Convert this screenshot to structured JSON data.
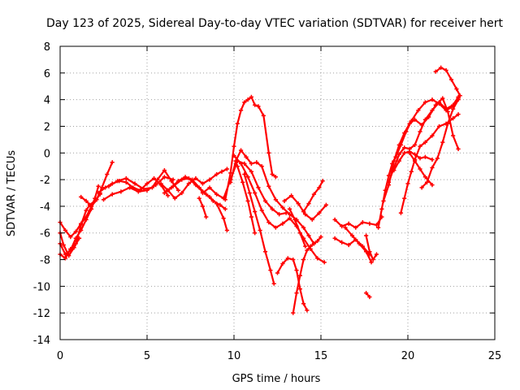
{
  "chart_data": {
    "type": "scatter",
    "title": "Day 123 of 2025, Sidereal Day-to-day VTEC variation (SDTVAR) for receiver hert",
    "xlabel": "GPS time / hours",
    "ylabel": "SDTVAR / TECUs",
    "xlim": [
      0,
      25
    ],
    "ylim": [
      -14,
      8
    ],
    "x_ticks": [
      0,
      5,
      10,
      15,
      20,
      25
    ],
    "y_ticks": [
      -14,
      -12,
      -10,
      -8,
      -6,
      -4,
      -2,
      0,
      2,
      4,
      6,
      8
    ],
    "x_tick_labels": [
      "0",
      "5",
      "10",
      "15",
      "20",
      "25"
    ],
    "y_tick_labels": [
      "-14",
      "-12",
      "-10",
      "-8",
      "-6",
      "-4",
      "-2",
      "0",
      "2",
      "4",
      "6",
      "8"
    ],
    "grid": true,
    "marker": "+",
    "series_color": "#ff0000",
    "series": [
      {
        "x": [
          0.0,
          0.3,
          0.6,
          0.9,
          1.2,
          1.5,
          1.8,
          2.1,
          2.3
        ],
        "y": [
          -5.2,
          -5.8,
          -6.3,
          -5.9,
          -5.3,
          -4.8,
          -4.0,
          -3.5,
          -3.0
        ]
      },
      {
        "x": [
          0.0,
          0.3,
          0.6,
          0.9,
          1.2,
          1.5,
          1.8,
          2.0,
          2.2
        ],
        "y": [
          -6.8,
          -7.6,
          -7.3,
          -6.4,
          -5.8,
          -5.0,
          -4.2,
          -3.4,
          -2.5
        ]
      },
      {
        "x": [
          0.0,
          0.3,
          0.6,
          0.9,
          1.2,
          1.5,
          1.7,
          2.0,
          2.3
        ],
        "y": [
          -7.6,
          -7.9,
          -7.2,
          -6.8,
          -5.4,
          -4.3,
          -3.9,
          -3.6,
          -3.1
        ]
      },
      {
        "x": [
          0.0,
          0.2,
          0.5,
          0.8,
          1.1
        ],
        "y": [
          -6.0,
          -6.9,
          -7.7,
          -7.1,
          -6.4
        ]
      },
      {
        "x": [
          1.2,
          1.5,
          1.8,
          2.1,
          2.4,
          2.7,
          3.0
        ],
        "y": [
          -3.3,
          -3.6,
          -4.0,
          -3.5,
          -2.6,
          -1.6,
          -0.7
        ]
      },
      {
        "x": [
          2.2,
          2.6,
          3.0,
          3.4,
          3.8,
          4.2,
          4.6,
          5.0,
          5.4,
          5.8,
          6.2
        ],
        "y": [
          -3.0,
          -2.6,
          -2.3,
          -2.1,
          -2.2,
          -2.6,
          -2.8,
          -2.3,
          -1.9,
          -2.4,
          -3.2
        ]
      },
      {
        "x": [
          2.5,
          3.0,
          3.5,
          4.0,
          4.5,
          5.0,
          5.5,
          6.0,
          6.5
        ],
        "y": [
          -3.5,
          -3.1,
          -2.9,
          -2.6,
          -2.9,
          -2.8,
          -2.4,
          -1.8,
          -2.0
        ]
      },
      {
        "x": [
          2.8,
          3.3,
          3.8,
          4.3,
          4.8,
          5.3,
          5.6,
          6.0,
          6.4,
          6.8
        ],
        "y": [
          -2.5,
          -2.1,
          -1.9,
          -2.3,
          -2.7,
          -2.6,
          -2.0,
          -1.3,
          -2.1,
          -2.8
        ]
      },
      {
        "x": [
          5.8,
          6.2,
          6.6,
          7.0,
          7.4,
          7.8,
          8.2,
          8.6,
          9.0,
          9.3,
          9.6
        ],
        "y": [
          -2.3,
          -2.8,
          -3.4,
          -3.0,
          -2.3,
          -1.9,
          -2.3,
          -2.0,
          -1.6,
          -1.4,
          -1.2
        ]
      },
      {
        "x": [
          6.0,
          6.4,
          6.8,
          7.2,
          7.6,
          8.0,
          8.4,
          8.8,
          9.2,
          9.5
        ],
        "y": [
          -3.0,
          -2.6,
          -2.1,
          -1.8,
          -2.0,
          -2.6,
          -3.1,
          -3.6,
          -3.9,
          -4.2
        ]
      },
      {
        "x": [
          6.5,
          7.0,
          7.4,
          7.8,
          8.2,
          8.6,
          9.0,
          9.4,
          9.6
        ],
        "y": [
          -2.5,
          -2.0,
          -1.9,
          -2.4,
          -2.9,
          -3.3,
          -3.8,
          -4.9,
          -5.8
        ]
      },
      {
        "x": [
          8.0,
          8.2,
          8.4
        ],
        "y": [
          -3.4,
          -4.0,
          -4.8
        ]
      },
      {
        "x": [
          8.2,
          8.6,
          9.0,
          9.4,
          9.8,
          10.2,
          10.6,
          11.0,
          11.4,
          11.8,
          12.2,
          12.6,
          13.0
        ],
        "y": [
          -3.0,
          -2.6,
          -3.1,
          -3.4,
          -2.0,
          -0.6,
          -0.8,
          -1.4,
          -2.6,
          -3.6,
          -4.2,
          -4.6,
          -4.5
        ]
      },
      {
        "x": [
          9.5,
          9.8,
          10.0,
          10.2,
          10.4,
          10.6,
          10.8,
          11.0,
          11.2,
          11.4,
          11.7,
          12.0,
          12.2,
          12.4
        ],
        "y": [
          -3.5,
          -1.5,
          0.5,
          2.2,
          3.2,
          3.8,
          4.0,
          4.2,
          3.6,
          3.5,
          2.8,
          0.0,
          -1.6,
          -1.8
        ]
      },
      {
        "x": [
          9.8,
          10.1,
          10.4,
          10.7,
          11.0,
          11.3,
          11.6,
          12.0,
          12.4,
          12.8,
          13.2,
          13.6,
          14.0,
          14.3,
          14.6
        ],
        "y": [
          -2.2,
          -0.6,
          0.2,
          -0.3,
          -0.8,
          -0.7,
          -1.0,
          -2.5,
          -3.5,
          -4.1,
          -4.6,
          -5.0,
          -5.6,
          -6.2,
          -6.8
        ]
      },
      {
        "x": [
          10.2,
          10.5,
          10.8,
          11.0,
          11.2
        ],
        "y": [
          -1.0,
          -2.2,
          -3.6,
          -4.8,
          -6.0
        ]
      },
      {
        "x": [
          10.6,
          10.9,
          11.2,
          11.5,
          11.8,
          12.1,
          12.3
        ],
        "y": [
          -1.6,
          -3.0,
          -4.4,
          -5.8,
          -7.4,
          -8.8,
          -9.8
        ]
      },
      {
        "x": [
          10.0,
          10.4,
          10.8,
          11.2,
          11.6,
          12.0,
          12.4,
          12.8,
          13.2,
          13.6,
          14.0,
          14.4,
          14.8,
          15.2
        ],
        "y": [
          -0.2,
          -0.8,
          -1.8,
          -3.0,
          -4.3,
          -5.2,
          -5.6,
          -5.3,
          -4.9,
          -5.5,
          -6.4,
          -7.2,
          -7.9,
          -8.2
        ]
      },
      {
        "x": [
          12.5,
          12.8,
          13.1,
          13.4,
          13.6,
          13.8,
          14.0,
          14.2
        ],
        "y": [
          -9.0,
          -8.3,
          -7.9,
          -8.0,
          -8.8,
          -10.2,
          -11.3,
          -11.8
        ]
      },
      {
        "x": [
          13.4,
          13.6,
          13.8,
          14.0,
          14.2,
          14.4,
          14.6,
          14.8,
          15.0
        ],
        "y": [
          -12.0,
          -10.5,
          -9.2,
          -8.0,
          -7.3,
          -7.0,
          -6.8,
          -6.6,
          -6.3
        ]
      },
      {
        "x": [
          12.9,
          13.3,
          13.7,
          14.1,
          14.5,
          14.9,
          15.3
        ],
        "y": [
          -3.6,
          -3.2,
          -3.8,
          -4.6,
          -5.0,
          -4.5,
          -3.9
        ]
      },
      {
        "x": [
          13.2,
          13.5,
          13.8,
          14.1
        ],
        "y": [
          -4.2,
          -5.0,
          -6.0,
          -7.0
        ]
      },
      {
        "x": [
          14.0,
          14.3,
          14.6,
          14.9,
          15.1
        ],
        "y": [
          -4.4,
          -3.8,
          -3.1,
          -2.6,
          -2.1
        ]
      },
      {
        "x": [
          15.8,
          16.2,
          16.6,
          17.0,
          17.4,
          17.8,
          18.2,
          18.5
        ],
        "y": [
          -5.0,
          -5.5,
          -5.3,
          -5.6,
          -5.2,
          -5.3,
          -5.4,
          -4.8
        ]
      },
      {
        "x": [
          15.8,
          16.2,
          16.6,
          17.0,
          17.4,
          17.8
        ],
        "y": [
          -6.4,
          -6.7,
          -6.9,
          -6.5,
          -7.0,
          -7.6
        ]
      },
      {
        "x": [
          16.4,
          16.8,
          17.2,
          17.6,
          17.9
        ],
        "y": [
          -5.6,
          -6.2,
          -6.8,
          -7.4,
          -8.2
        ]
      },
      {
        "x": [
          17.6,
          17.8,
          18.0,
          18.2
        ],
        "y": [
          -6.2,
          -7.4,
          -8.0,
          -7.6
        ]
      },
      {
        "x": [
          17.6,
          17.8
        ],
        "y": [
          -10.5,
          -10.8
        ]
      },
      {
        "x": [
          18.3,
          18.5,
          18.7,
          18.9,
          19.1,
          19.3,
          19.6,
          19.9,
          20.2,
          20.6,
          21.0,
          21.4,
          21.8,
          22.2,
          22.6,
          22.9
        ],
        "y": [
          -5.6,
          -4.2,
          -2.8,
          -1.7,
          -0.8,
          -0.3,
          0.6,
          1.6,
          2.4,
          3.2,
          3.8,
          4.0,
          3.7,
          3.2,
          3.5,
          4.1
        ]
      },
      {
        "x": [
          18.6,
          18.9,
          19.2,
          19.5,
          19.8,
          20.1,
          20.4,
          20.8,
          21.2,
          21.6,
          22.0,
          22.3,
          22.6,
          22.9
        ],
        "y": [
          -3.6,
          -2.4,
          -0.6,
          0.6,
          1.5,
          2.2,
          2.5,
          2.1,
          2.7,
          3.6,
          4.1,
          3.1,
          1.3,
          0.3
        ]
      },
      {
        "x": [
          18.9,
          19.2,
          19.5,
          19.8,
          20.1,
          20.4,
          20.7,
          21.0,
          21.4,
          21.8,
          22.2,
          22.6,
          22.9
        ],
        "y": [
          -2.2,
          -1.1,
          -0.1,
          0.4,
          0.3,
          0.6,
          1.6,
          2.5,
          3.2,
          3.8,
          3.3,
          3.6,
          4.2
        ]
      },
      {
        "x": [
          19.2,
          19.5,
          19.8,
          20.1,
          20.4,
          20.7,
          21.0,
          21.4
        ],
        "y": [
          -1.3,
          -0.6,
          0.0,
          0.1,
          -0.1,
          -0.4,
          -0.3,
          -0.5
        ]
      },
      {
        "x": [
          19.6,
          19.8,
          20.0,
          20.2,
          20.4,
          20.7,
          21.0,
          21.4,
          21.8,
          22.2,
          22.6,
          22.9
        ],
        "y": [
          -4.5,
          -3.4,
          -2.3,
          -1.4,
          -0.5,
          0.5,
          0.8,
          1.3,
          2.0,
          2.2,
          2.6,
          2.9
        ]
      },
      {
        "x": [
          20.8,
          21.1,
          21.4,
          21.7,
          22.0,
          22.3,
          22.6,
          22.9
        ],
        "y": [
          -2.6,
          -2.2,
          -1.1,
          -0.4,
          0.8,
          2.2,
          3.3,
          4.0
        ]
      },
      {
        "x": [
          21.6,
          21.9,
          22.2,
          22.5,
          22.8,
          23.0
        ],
        "y": [
          6.1,
          6.4,
          6.2,
          5.5,
          4.8,
          4.3
        ]
      },
      {
        "x": [
          20.1,
          20.4,
          20.7,
          21.0,
          21.4
        ],
        "y": [
          0.0,
          -0.6,
          -1.2,
          -1.8,
          -2.4
        ]
      }
    ]
  }
}
